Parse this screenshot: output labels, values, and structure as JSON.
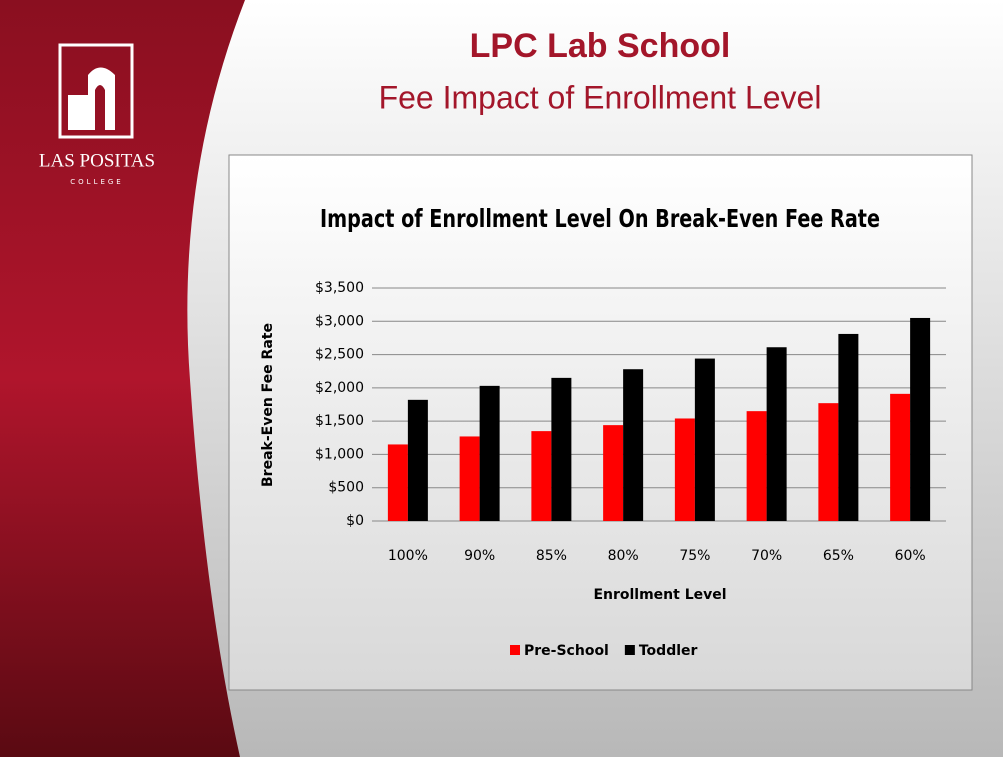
{
  "slide": {
    "title": "LPC Lab School",
    "subtitle": "Fee Impact of Enrollment Level",
    "logo_name": "LAS POSITAS",
    "logo_sub": "COLLEGE"
  },
  "chart_data": {
    "type": "bar",
    "title": "Impact of Enrollment Level On Break-Even Fee Rate",
    "x_label": "Enrollment Level",
    "y_label": "Break-Even Fee Rate",
    "categories": [
      "100%",
      "90%",
      "85%",
      "80%",
      "75%",
      "70%",
      "65%",
      "60%"
    ],
    "series": [
      {
        "name": "Pre-School",
        "color": "#ff0000",
        "values": [
          1150,
          1270,
          1350,
          1440,
          1540,
          1650,
          1770,
          1910
        ]
      },
      {
        "name": "Toddler",
        "color": "#000000",
        "values": [
          1820,
          2030,
          2150,
          2280,
          2440,
          2610,
          2810,
          3050
        ]
      }
    ],
    "ylim": [
      0,
      3500
    ],
    "yticks": [
      {
        "value": 0,
        "label": "$0"
      },
      {
        "value": 500,
        "label": "$500"
      },
      {
        "value": 1000,
        "label": "$1,000"
      },
      {
        "value": 1500,
        "label": "$1,500"
      },
      {
        "value": 2000,
        "label": "$2,000"
      },
      {
        "value": 2500,
        "label": "$2,500"
      },
      {
        "value": 3000,
        "label": "$3,000"
      },
      {
        "value": 3500,
        "label": "$3,500"
      }
    ],
    "grid": true,
    "legend": "bottom"
  }
}
